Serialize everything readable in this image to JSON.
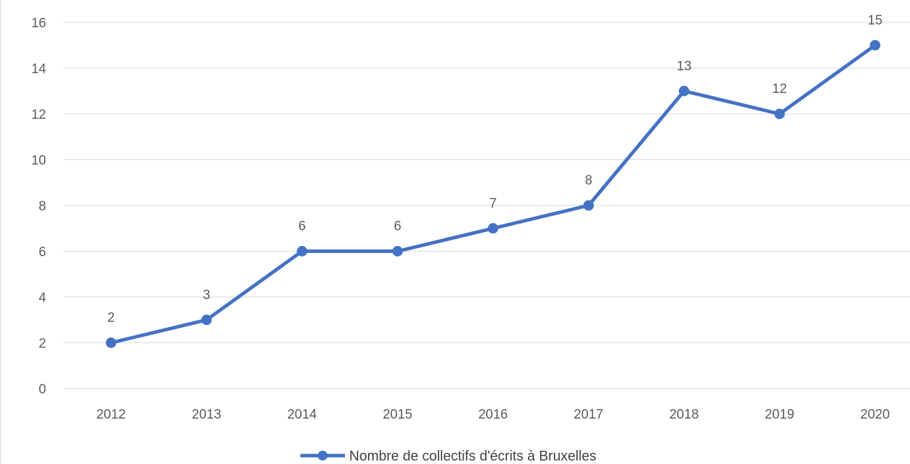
{
  "chart_data": {
    "type": "line",
    "categories": [
      "2012",
      "2013",
      "2014",
      "2015",
      "2016",
      "2017",
      "2018",
      "2019",
      "2020"
    ],
    "series": [
      {
        "name": "Nombre de collectifs d'écrits à Bruxelles",
        "values": [
          2,
          3,
          6,
          6,
          7,
          8,
          13,
          12,
          15
        ],
        "color": "#4472c4"
      }
    ],
    "data_labels": [
      "2",
      "3",
      "6",
      "6",
      "7",
      "8",
      "13",
      "12",
      "15"
    ],
    "ylim": [
      0,
      16
    ],
    "yticks": [
      "0",
      "2",
      "4",
      "6",
      "8",
      "10",
      "12",
      "14",
      "16"
    ],
    "title": "",
    "xlabel": "",
    "ylabel": "",
    "grid": true,
    "legend_position": "bottom",
    "gridline_color": "#d9d9d9"
  }
}
